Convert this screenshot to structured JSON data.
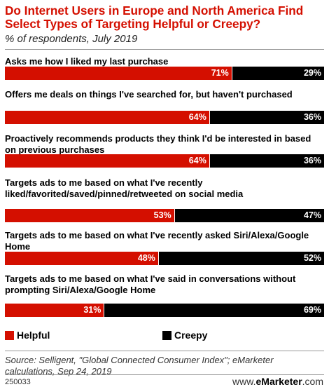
{
  "chart_data": {
    "type": "bar",
    "title": "Do Internet Users in Europe and North America Find Select Types of Targeting Helpful or Creepy?",
    "subtitle": "% of respondents, July 2019",
    "orientation": "horizontal",
    "stacked": true,
    "categories": [
      "Asks me how I liked my last purchase",
      "Offers me deals on things I've searched for, but haven't purchased",
      "Proactively recommends products they think I'd be interested in based on previous purchases",
      "Targets ads to me based on what I've recently liked/favorited/saved/pinned/retweeted on social media",
      "Targets ads to me based on what I've recently asked Siri/Alexa/Google Home",
      "Targets ads to me based on what I've said in conversations without prompting Siri/Alexa/Google Home"
    ],
    "series": [
      {
        "name": "Helpful",
        "color": "#d40f00",
        "values": [
          71,
          64,
          64,
          53,
          48,
          31
        ]
      },
      {
        "name": "Creepy",
        "color": "#000000",
        "values": [
          29,
          36,
          36,
          47,
          52,
          69
        ]
      }
    ],
    "xlim": [
      0,
      100
    ],
    "value_suffix": "%",
    "legend_position": "bottom"
  },
  "source": "Source: Selligent, \"Global Connected Consumer Index\"; eMarketer calculations, Sep 24, 2019",
  "footer": {
    "id": "250033",
    "site_prefix": "www.",
    "site_brand": "eMarketer",
    "site_suffix": ".com"
  }
}
